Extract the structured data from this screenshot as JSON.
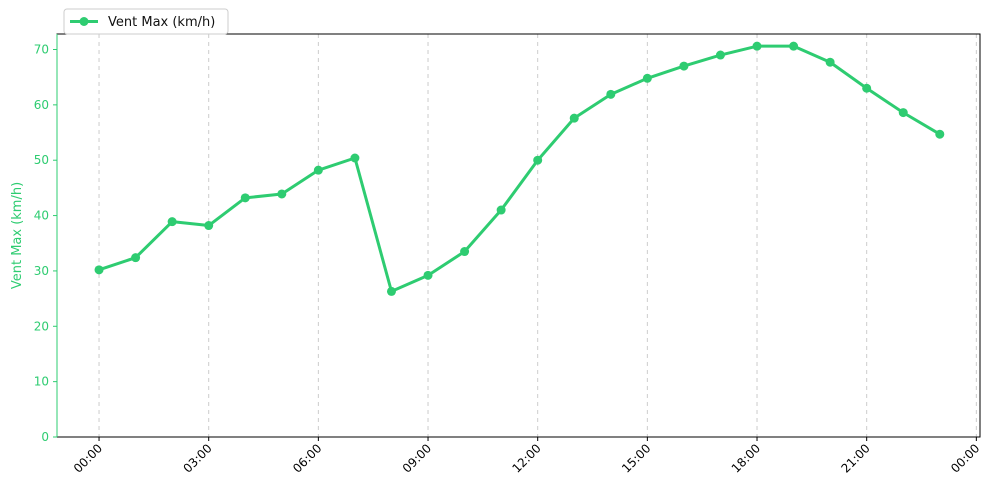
{
  "chart_data": {
    "type": "line",
    "xlabel": "",
    "ylabel": "Vent Max (km/h)",
    "x": [
      "00:00",
      "01:00",
      "02:00",
      "03:00",
      "04:00",
      "05:00",
      "06:00",
      "07:00",
      "08:00",
      "09:00",
      "10:00",
      "11:00",
      "12:00",
      "13:00",
      "14:00",
      "15:00",
      "16:00",
      "17:00",
      "18:00",
      "19:00",
      "20:00",
      "21:00",
      "22:00",
      "23:00"
    ],
    "x_ticks": [
      "00:00",
      "03:00",
      "06:00",
      "09:00",
      "12:00",
      "15:00",
      "18:00",
      "21:00",
      "00:00"
    ],
    "x_tick_hours": [
      0,
      3,
      6,
      9,
      12,
      15,
      18,
      21,
      24
    ],
    "xlim_hours": [
      -1.15,
      24.1
    ],
    "ylim": [
      0,
      72.8
    ],
    "y_ticks": [
      0,
      10,
      20,
      30,
      40,
      50,
      60,
      70
    ],
    "grid": "vertical-dashed",
    "legend_position": "top-left",
    "series": [
      {
        "name": "Vent Max (km/h)",
        "color": "#2ecc71",
        "values": [
          30.2,
          32.4,
          38.9,
          38.2,
          43.2,
          43.9,
          48.2,
          50.4,
          26.3,
          29.2,
          33.5,
          41.0,
          50.0,
          57.6,
          61.9,
          64.8,
          67.0,
          69.0,
          70.6,
          70.6,
          67.7,
          63.0,
          58.6,
          54.7
        ]
      }
    ],
    "tick_color": "#2ecc71",
    "grid_color": "#cccccc"
  }
}
